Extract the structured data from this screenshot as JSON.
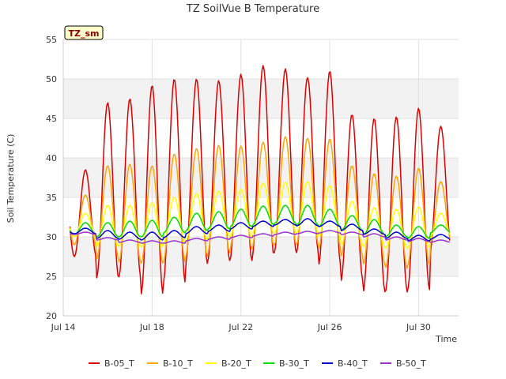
{
  "chart_data": {
    "type": "line",
    "title": "TZ SoilVue B Temperature",
    "xlabel": "Time",
    "ylabel": "Soil Temperature (C)",
    "badge": "TZ_sm",
    "ylim": [
      20,
      55
    ],
    "yticks": [
      20,
      25,
      30,
      35,
      40,
      45,
      50,
      55
    ],
    "xlim_days": [
      14,
      31.8
    ],
    "xticks": [
      {
        "day": 14,
        "label": "Jul 14"
      },
      {
        "day": 18,
        "label": "Jul 18"
      },
      {
        "day": 22,
        "label": "Jul 22"
      },
      {
        "day": 26,
        "label": "Jul 26"
      },
      {
        "day": 30,
        "label": "Jul 30"
      }
    ],
    "grid": true,
    "legend_position": "bottom",
    "day_range": [
      14.3,
      31.4
    ],
    "daily_peak_days": [
      15.0,
      16.0,
      17.0,
      18.0,
      19.0,
      20.0,
      21.0,
      22.0,
      23.0,
      24.0,
      25.0,
      26.0,
      27.0,
      28.0,
      29.0,
      30.0,
      31.0
    ],
    "series": [
      {
        "name": "B-05_T",
        "color": "#dd0000",
        "daily_max": [
          38.5,
          47.0,
          47.5,
          49.2,
          50.0,
          50.0,
          49.8,
          50.6,
          51.7,
          51.3,
          50.2,
          51.0,
          45.5,
          45.0,
          45.2,
          46.3,
          44.0
        ],
        "daily_min": [
          27.5,
          24.8,
          24.9,
          22.7,
          24.2,
          26.6,
          27.0,
          27.0,
          27.5,
          28.0,
          28.0,
          26.5,
          24.4,
          23.0,
          23.0,
          23.3,
          28.0
        ]
      },
      {
        "name": "B-10_T",
        "color": "#ffa500",
        "daily_max": [
          35.3,
          39.0,
          39.2,
          39.0,
          40.5,
          41.2,
          41.6,
          41.5,
          42.0,
          42.7,
          42.5,
          42.4,
          39.0,
          38.0,
          37.7,
          38.7,
          37.0
        ],
        "daily_min": [
          29.0,
          27.2,
          26.8,
          26.6,
          26.8,
          27.5,
          28.0,
          28.5,
          28.7,
          29.0,
          29.0,
          28.5,
          27.5,
          26.5,
          26.0,
          26.5,
          29.0
        ]
      },
      {
        "name": "B-20_T",
        "color": "#ffff00",
        "daily_max": [
          33.0,
          34.0,
          34.0,
          34.3,
          35.0,
          35.5,
          35.8,
          36.0,
          36.8,
          36.9,
          37.0,
          36.5,
          34.5,
          33.7,
          33.5,
          33.8,
          33.0
        ],
        "daily_min": [
          30.0,
          28.8,
          28.8,
          28.7,
          29.2,
          29.5,
          30.0,
          30.0,
          30.4,
          30.5,
          30.5,
          30.0,
          29.0,
          28.7,
          28.5,
          28.7,
          30.0
        ]
      },
      {
        "name": "B-30_T",
        "color": "#00dd00",
        "daily_max": [
          31.8,
          31.8,
          32.0,
          32.1,
          32.5,
          33.0,
          33.2,
          33.5,
          33.9,
          34.0,
          34.0,
          33.5,
          32.7,
          32.2,
          31.5,
          31.3,
          31.5
        ],
        "daily_min": [
          30.3,
          30.0,
          30.0,
          30.0,
          30.5,
          30.8,
          31.0,
          31.3,
          31.5,
          31.7,
          31.5,
          31.3,
          30.8,
          30.3,
          30.0,
          29.8,
          30.5
        ]
      },
      {
        "name": "B-40_T",
        "color": "#0000cc",
        "daily_max": [
          31.1,
          30.8,
          30.6,
          30.6,
          30.8,
          31.3,
          31.5,
          31.8,
          32.0,
          32.2,
          32.3,
          32.0,
          31.6,
          31.0,
          30.6,
          30.2,
          30.3
        ],
        "daily_min": [
          30.4,
          29.8,
          29.7,
          29.6,
          29.9,
          30.4,
          30.7,
          31.0,
          31.3,
          31.5,
          31.4,
          31.3,
          30.8,
          30.3,
          29.8,
          29.5,
          29.7
        ]
      },
      {
        "name": "B-50_T",
        "color": "#9933cc",
        "daily_max": [
          30.6,
          29.9,
          29.6,
          29.5,
          29.5,
          29.8,
          30.0,
          30.2,
          30.4,
          30.6,
          30.7,
          30.8,
          30.6,
          30.4,
          30.0,
          29.8,
          29.6
        ],
        "daily_min": [
          30.3,
          29.6,
          29.3,
          29.2,
          29.2,
          29.5,
          29.7,
          29.9,
          30.1,
          30.3,
          30.4,
          30.5,
          30.3,
          30.0,
          29.6,
          29.4,
          29.3
        ]
      }
    ]
  }
}
